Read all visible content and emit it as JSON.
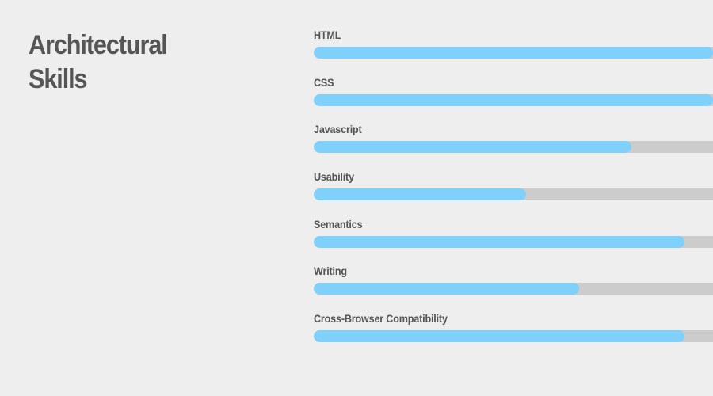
{
  "heading": {
    "line1": "Architectural",
    "line2": "Skills"
  },
  "skills": [
    {
      "label": "HTML",
      "level_percent": 100
    },
    {
      "label": "CSS",
      "level_percent": 100
    },
    {
      "label": "Javascript",
      "level_percent": 79.6
    },
    {
      "label": "Usability",
      "level_percent": 53.2
    },
    {
      "label": "Semantics",
      "level_percent": 92.9
    },
    {
      "label": "Writing",
      "level_percent": 66.4
    },
    {
      "label": "Cross-Browser Compatibility",
      "level_percent": 92.9
    }
  ],
  "colors": {
    "background": "#eeeeee",
    "text": "#555555",
    "bar_fill": "#7fd1fb",
    "bar_track": "#cccccc"
  }
}
